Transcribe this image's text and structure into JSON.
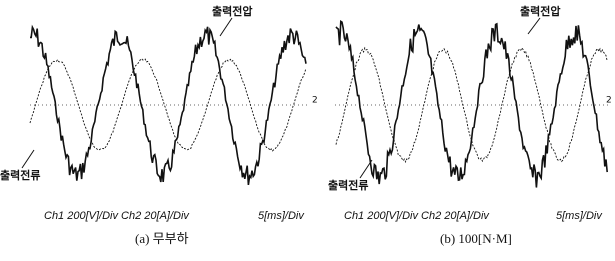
{
  "panels": [
    {
      "voltage_label": "출력전압",
      "current_label": "출력전류",
      "channel_marker": "2",
      "scale_channels": "Ch1 200[V]/Div Ch2 20[A]/Div",
      "scale_time": "5[ms]/Div",
      "caption": "(a) 무부하"
    },
    {
      "voltage_label": "출력전압",
      "current_label": "출력전류",
      "channel_marker": "2",
      "scale_channels": "Ch1 200[V]/Div Ch2 20[A]/Div",
      "scale_time": "5[ms]/Div",
      "caption": "(b) 100[N·M]"
    }
  ]
}
